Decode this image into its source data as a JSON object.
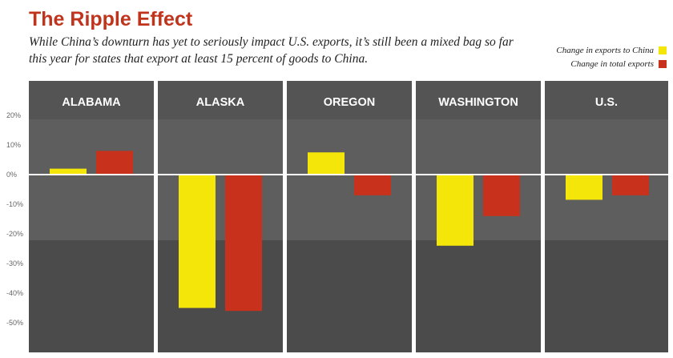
{
  "chart_data": {
    "type": "bar",
    "title": "The Ripple Effect",
    "subtitle": "While China’s downturn has yet to seriously impact U.S. exports, it’s still been a mixed bag so far this year for states that export at least 15 percent of goods to China.",
    "categories": [
      "ALABAMA",
      "ALASKA",
      "OREGON",
      "WASHINGTON",
      "U.S."
    ],
    "series": [
      {
        "name": "Change in exports to China",
        "color": "#f5e60a",
        "values": [
          2,
          -45,
          7.5,
          -24,
          -8.5
        ]
      },
      {
        "name": "Change in total exports",
        "color": "#c8321c",
        "values": [
          8,
          -46,
          -7,
          -14,
          -7
        ]
      }
    ],
    "y_ticks": [
      "20%",
      "10%",
      "0%",
      "-10%",
      "-20%",
      "-30%",
      "-40%",
      "-50%"
    ],
    "y_tick_values": [
      20,
      10,
      0,
      -10,
      -20,
      -30,
      -40,
      -50
    ],
    "ylim": [
      -60,
      30
    ],
    "legend_position": "top-right",
    "grid": false,
    "background": "dark photo of crowded street behind panels"
  }
}
